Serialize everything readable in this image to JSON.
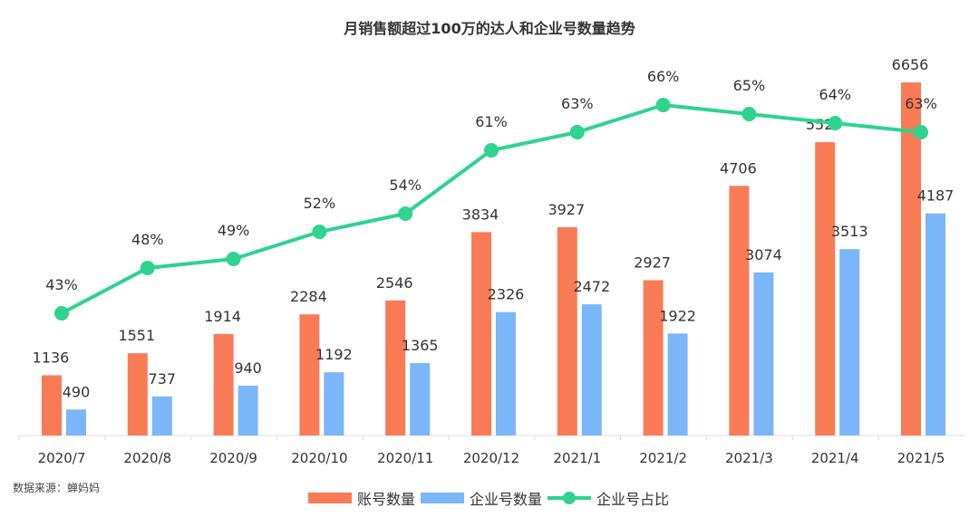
{
  "chart_data": {
    "type": "bar",
    "title": "月销售额超过100万的达人和企业号数量趋势",
    "categories": [
      "2020/7",
      "2020/8",
      "2020/9",
      "2020/10",
      "2020/11",
      "2020/12",
      "2021/1",
      "2021/2",
      "2021/3",
      "2021/4",
      "2021/5"
    ],
    "series": [
      {
        "name": "账号数量",
        "type": "bar",
        "color": "#f97b55",
        "values": [
          1136,
          1551,
          1914,
          2284,
          2546,
          3834,
          3927,
          2927,
          4706,
          5529,
          6656
        ]
      },
      {
        "name": "企业号数量",
        "type": "bar",
        "color": "#7ab6f8",
        "values": [
          490,
          737,
          940,
          1192,
          1365,
          2326,
          2472,
          1922,
          3074,
          3513,
          4187
        ]
      },
      {
        "name": "企业号占比",
        "type": "line",
        "color": "#2dd38f",
        "unit": "%",
        "values": [
          43,
          48,
          49,
          52,
          54,
          61,
          63,
          66,
          65,
          64,
          63
        ]
      }
    ],
    "xlabel": "",
    "ylabel": "",
    "grid": false,
    "legend_position": "bottom-center"
  },
  "source": "数据来源：蝉妈妈"
}
